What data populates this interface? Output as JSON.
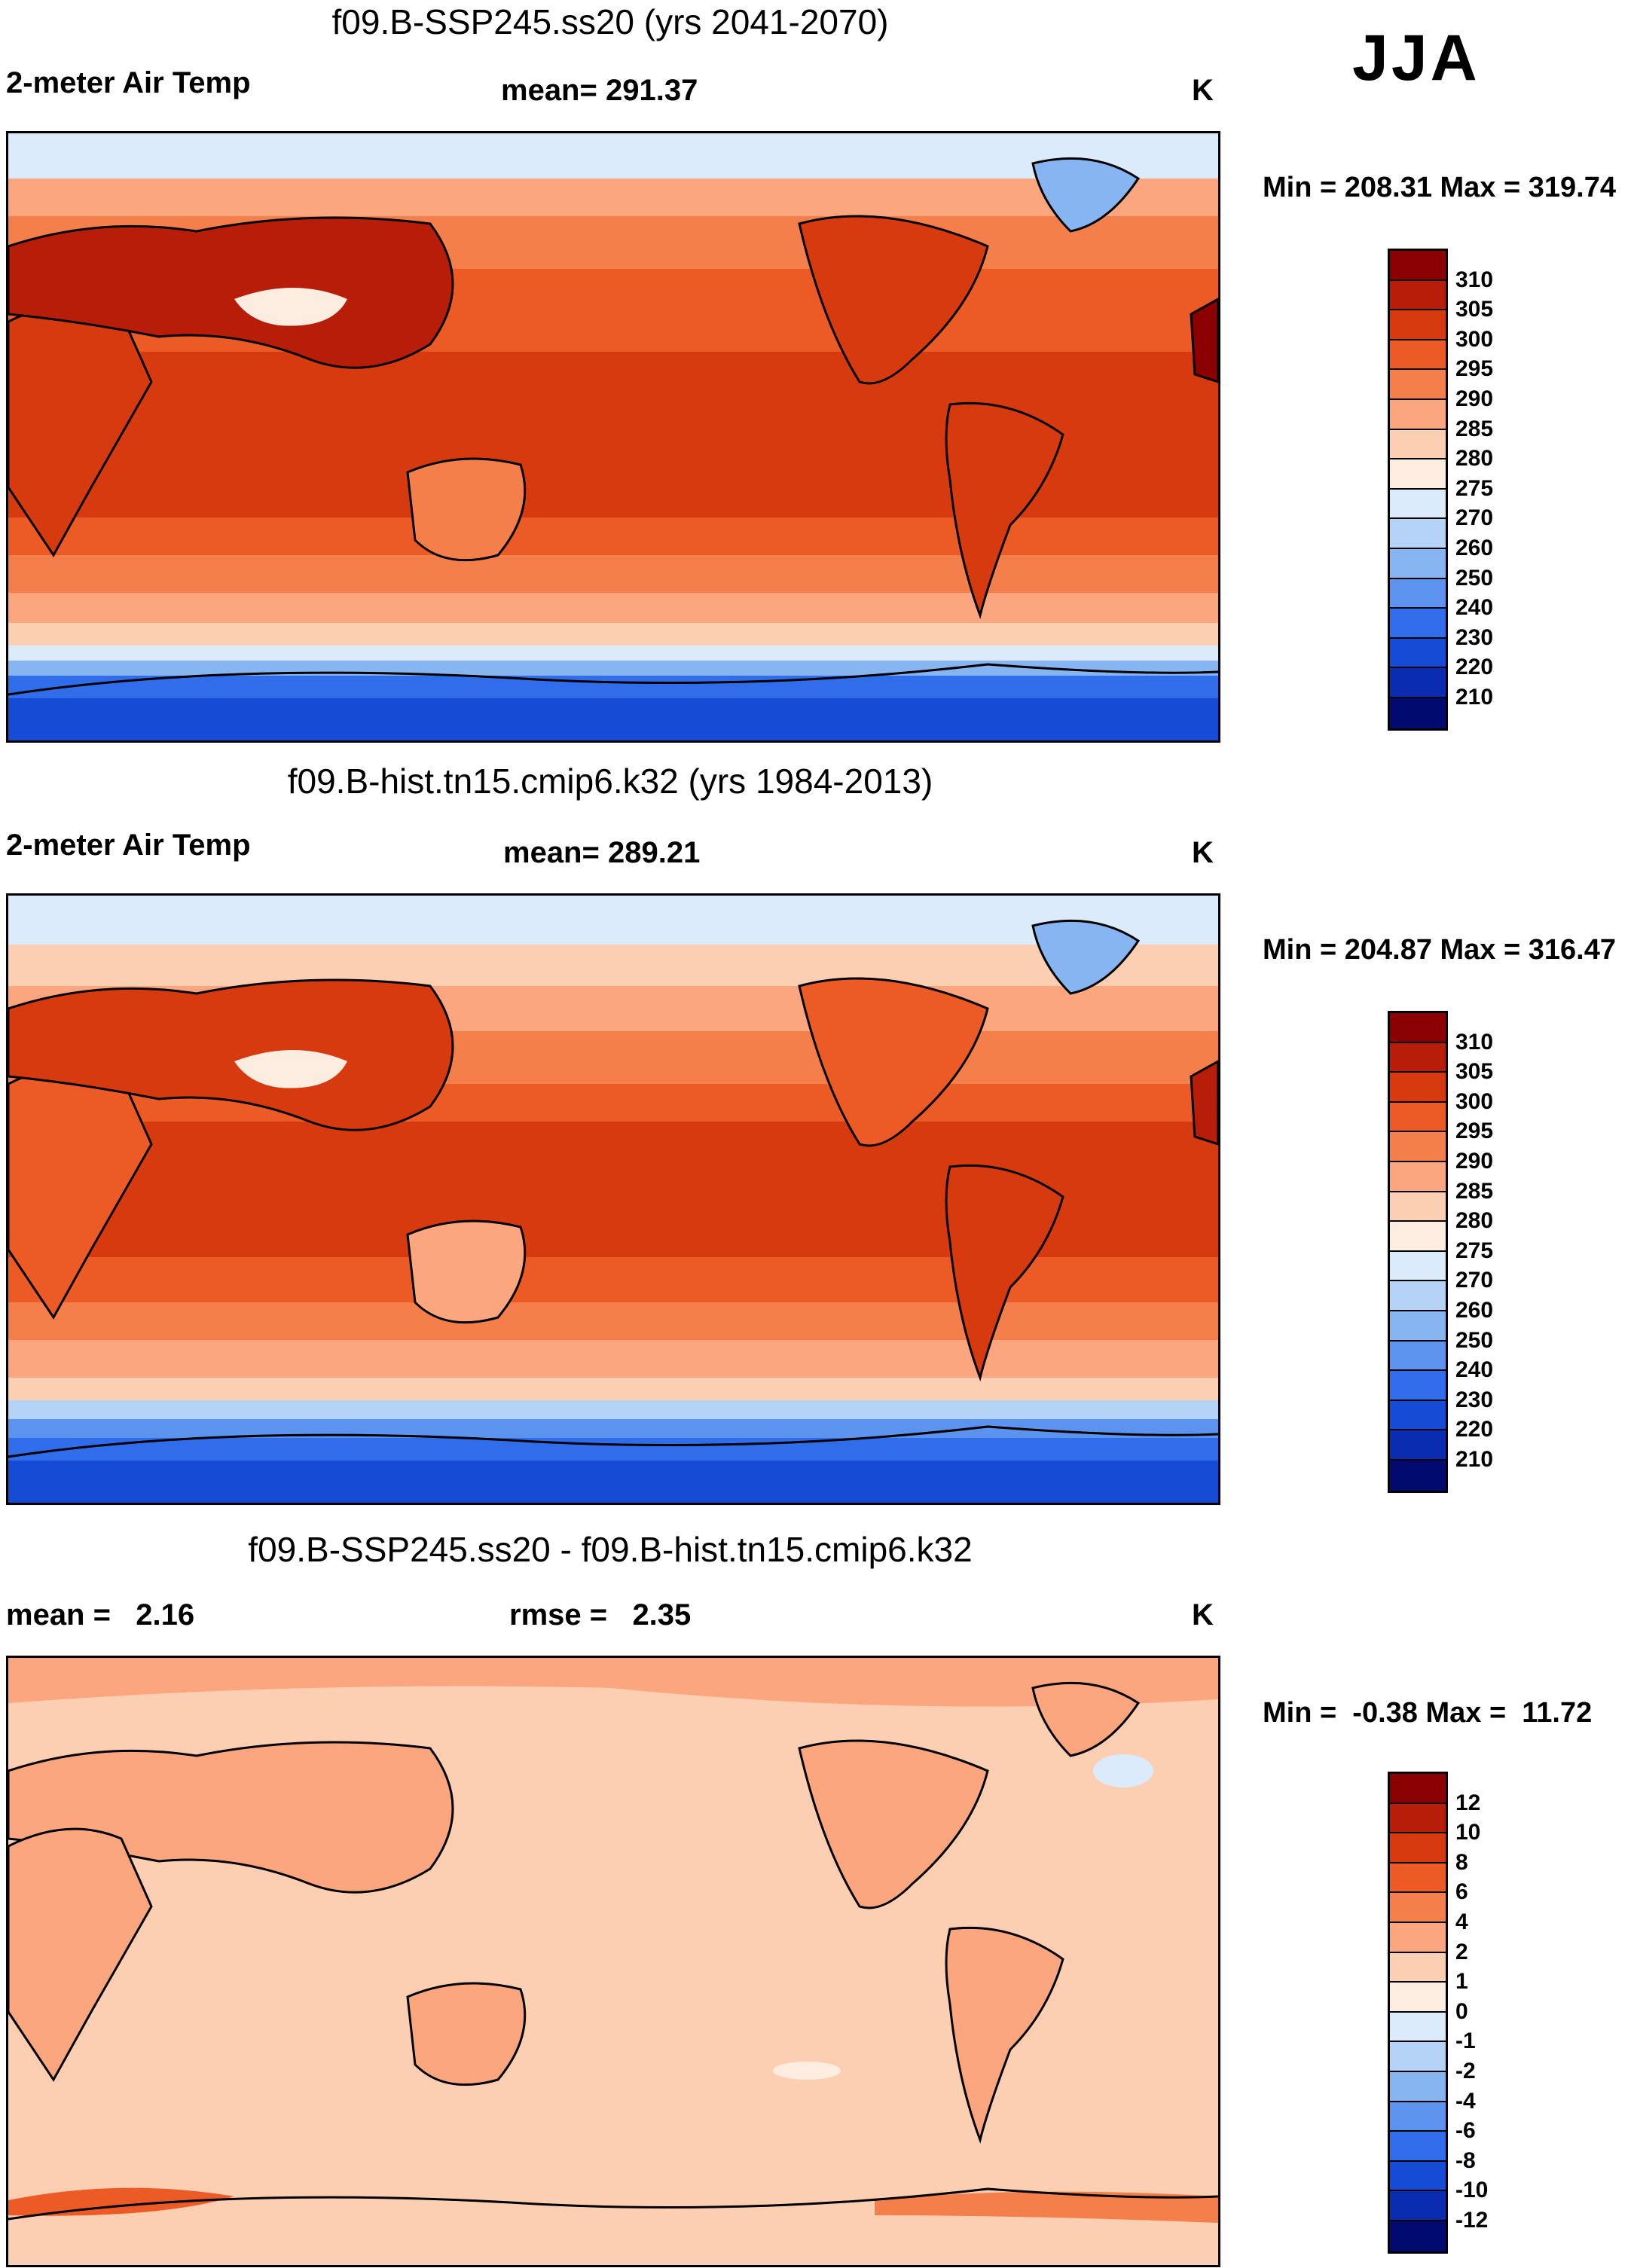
{
  "season": "JJA",
  "unit": "K",
  "panels": [
    {
      "title": "f09.B-SSP245.ss20 (yrs 2041-2070)",
      "left_label": "2-meter Air Temp",
      "center_label": "mean= 291.37",
      "minmax": "Min = 208.31 Max = 319.74",
      "colorbar": {
        "labels": [
          "310",
          "305",
          "300",
          "295",
          "290",
          "285",
          "280",
          "275",
          "270",
          "260",
          "250",
          "240",
          "230",
          "220",
          "210"
        ],
        "colors": [
          "#8b0000",
          "#b81d0a",
          "#d83a0f",
          "#ec5a26",
          "#f57f4b",
          "#fba67f",
          "#fdcfb2",
          "#fdece0",
          "#dcebfb",
          "#b4d3f6",
          "#86b5f2",
          "#5b93ef",
          "#2f6dea",
          "#164bd6",
          "#0a2cb0",
          "#000a6f"
        ]
      }
    },
    {
      "title": "f09.B-hist.tn15.cmip6.k32 (yrs 1984-2013)",
      "left_label": "2-meter Air Temp",
      "center_label": "mean= 289.21",
      "minmax": "Min = 204.87 Max = 316.47",
      "colorbar": {
        "labels": [
          "310",
          "305",
          "300",
          "295",
          "290",
          "285",
          "280",
          "275",
          "270",
          "260",
          "250",
          "240",
          "230",
          "220",
          "210"
        ],
        "colors": [
          "#8b0000",
          "#b81d0a",
          "#d83a0f",
          "#ec5a26",
          "#f57f4b",
          "#fba67f",
          "#fdcfb2",
          "#fdece0",
          "#dcebfb",
          "#b4d3f6",
          "#86b5f2",
          "#5b93ef",
          "#2f6dea",
          "#164bd6",
          "#0a2cb0",
          "#000a6f"
        ]
      }
    },
    {
      "title": "f09.B-SSP245.ss20 - f09.B-hist.tn15.cmip6.k32",
      "left_label": "mean =   2.16",
      "center_label": "rmse =   2.35",
      "minmax": "Min =  -0.38 Max =  11.72",
      "colorbar": {
        "labels": [
          "12",
          "10",
          "8",
          "6",
          "4",
          "2",
          "1",
          "0",
          "-1",
          "-2",
          "-4",
          "-6",
          "-8",
          "-10",
          "-12"
        ],
        "colors": [
          "#8b0000",
          "#b81d0a",
          "#d83a0f",
          "#ec5a26",
          "#f57f4b",
          "#fba67f",
          "#fdcfb2",
          "#fdece0",
          "#dcebfb",
          "#b4d3f6",
          "#86b5f2",
          "#5b93ef",
          "#2f6dea",
          "#164bd6",
          "#0a2cb0",
          "#000a6f"
        ]
      }
    }
  ]
}
